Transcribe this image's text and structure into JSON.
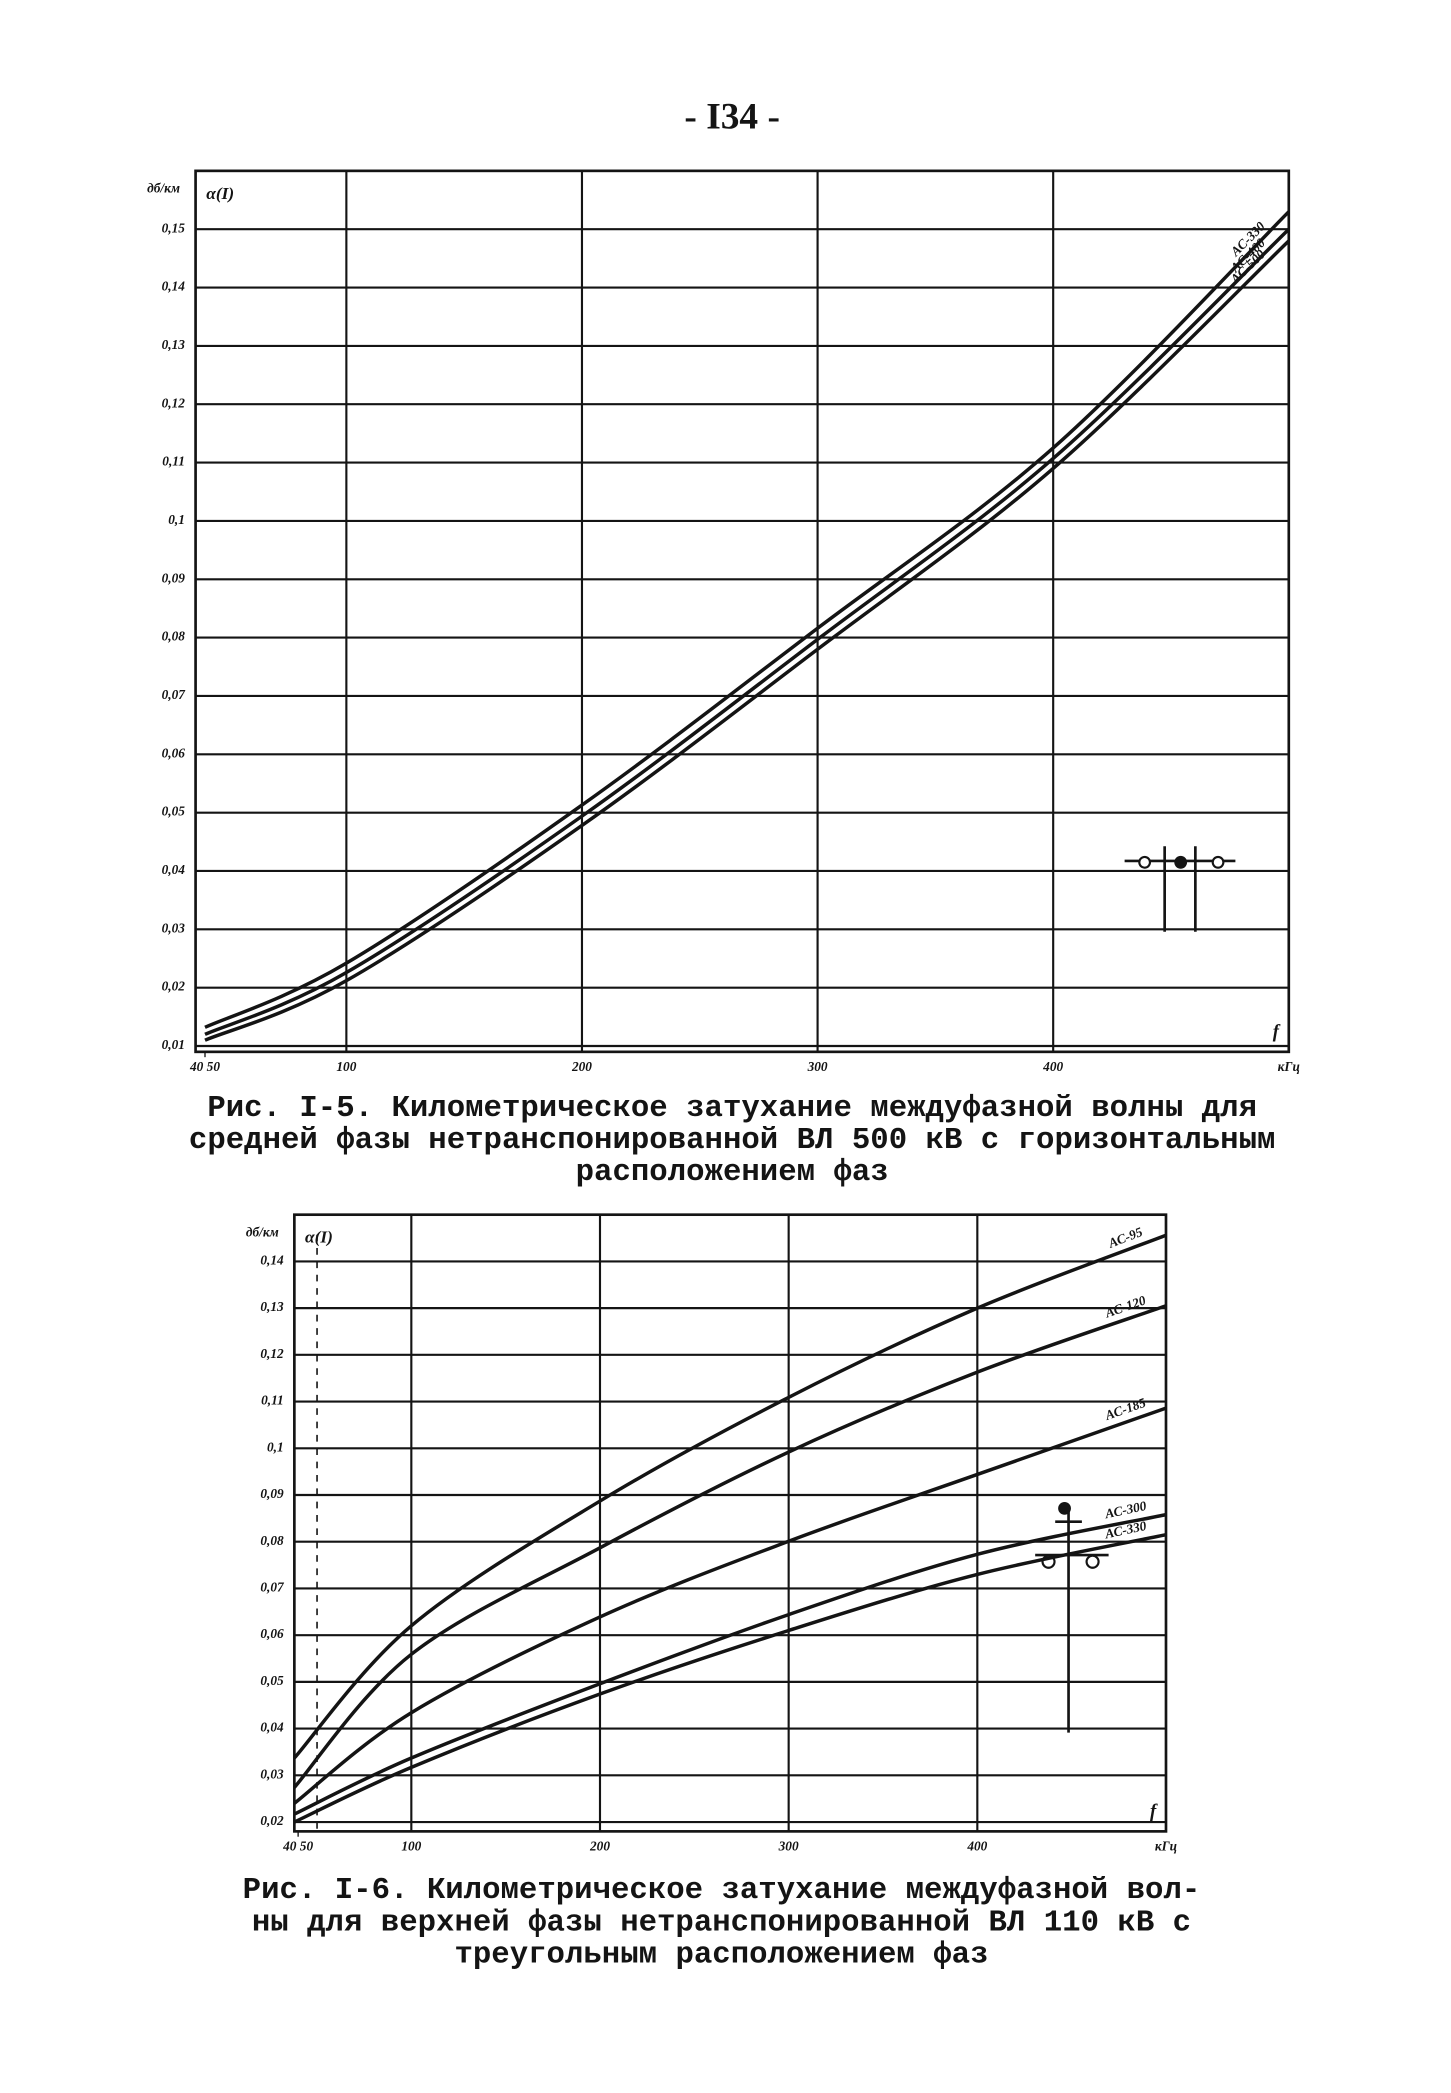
{
  "page_number": "- I34 -",
  "chart_data": [
    {
      "type": "line",
      "title": [
        "Рис. I-5. Километрическое затухание междуфазной волны для",
        "средней фазы нетранспонированной ВЛ 500 кВ с горизонтальным",
        "расположением фаз"
      ],
      "y_unit": "дб/км",
      "y_label": "α(I)",
      "x_label": "f",
      "x_unit": "кГц",
      "x": [
        40,
        100,
        200,
        300,
        400,
        500
      ],
      "series": [
        {
          "name": "АС-330",
          "color": "#141414",
          "values": [
            0.0132,
            0.0242,
            0.0513,
            0.0816,
            0.1125,
            0.153
          ]
        },
        {
          "name": "АС-400",
          "color": "#141414",
          "values": [
            0.012,
            0.0226,
            0.0494,
            0.0797,
            0.1107,
            0.15
          ]
        },
        {
          "name": "АС-500",
          "color": "#141414",
          "values": [
            0.011,
            0.0212,
            0.0478,
            0.078,
            0.109,
            0.148
          ]
        }
      ],
      "xlim": [
        36,
        500
      ],
      "ylim": [
        0.009,
        0.16
      ],
      "xticks": [
        {
          "value": 40,
          "label": "40 50"
        },
        100,
        200,
        300,
        400
      ],
      "yticks": [
        {
          "value": 0.01,
          "label": "0,01"
        },
        {
          "value": 0.02,
          "label": "0,02"
        },
        {
          "value": 0.03,
          "label": "0,03"
        },
        {
          "value": 0.04,
          "label": "0,04"
        },
        {
          "value": 0.05,
          "label": "0,05"
        },
        {
          "value": 0.06,
          "label": "0,06"
        },
        {
          "value": 0.07,
          "label": "0,07"
        },
        {
          "value": 0.08,
          "label": "0,08"
        },
        {
          "value": 0.09,
          "label": "0,09"
        },
        {
          "value": 0.1,
          "label": "0,1"
        },
        {
          "value": 0.11,
          "label": "0,11"
        },
        {
          "value": 0.12,
          "label": "0,12"
        },
        {
          "value": 0.13,
          "label": "0,13"
        },
        {
          "value": 0.14,
          "label": "0,14"
        },
        {
          "value": 0.15,
          "label": "0,15"
        }
      ],
      "grid": true
    },
    {
      "type": "line",
      "title": [
        "Рис. I-6. Километрическое затухание междуфазной вол-",
        "ны для верхней фазы нетранспонированной ВЛ 110 кВ с",
        "треугольным расположением фаз"
      ],
      "y_unit": "дб/км",
      "y_label": "α(I)",
      "x_label": "f",
      "x_unit": "кГц",
      "x": [
        38,
        100,
        200,
        300,
        400,
        500
      ],
      "series": [
        {
          "name": "АС-95",
          "color": "#141414",
          "values": [
            0.0337,
            0.062,
            0.0887,
            0.1109,
            0.13,
            0.1456
          ]
        },
        {
          "name": "АС-120",
          "color": "#141414",
          "values": [
            0.0274,
            0.0559,
            0.0787,
            0.0992,
            0.1163,
            0.1305
          ]
        },
        {
          "name": "АС-185",
          "color": "#141414",
          "values": [
            0.024,
            0.0434,
            0.0639,
            0.0801,
            0.0944,
            0.1086
          ]
        },
        {
          "name": "АС-300",
          "color": "#141414",
          "values": [
            0.0217,
            0.0337,
            0.0496,
            0.0644,
            0.0773,
            0.0858
          ]
        },
        {
          "name": "АС-330",
          "color": "#141414",
          "values": [
            0.02,
            0.0317,
            0.0474,
            0.061,
            0.073,
            0.0815
          ]
        }
      ],
      "xlim": [
        38,
        500
      ],
      "ylim": [
        0.018,
        0.15
      ],
      "xticks": [
        {
          "value": 40,
          "label": "40 50"
        },
        100,
        200,
        300,
        400
      ],
      "yticks": [
        {
          "value": 0.02,
          "label": "0,02"
        },
        {
          "value": 0.03,
          "label": "0,03"
        },
        {
          "value": 0.04,
          "label": "0,04"
        },
        {
          "value": 0.05,
          "label": "0,05"
        },
        {
          "value": 0.06,
          "label": "0,06"
        },
        {
          "value": 0.07,
          "label": "0,07"
        },
        {
          "value": 0.08,
          "label": "0,08"
        },
        {
          "value": 0.09,
          "label": "0,09"
        },
        {
          "value": 0.1,
          "label": "0,1"
        },
        {
          "value": 0.11,
          "label": "0,11"
        },
        {
          "value": 0.12,
          "label": "0,12"
        },
        {
          "value": 0.13,
          "label": "0,13"
        },
        {
          "value": 0.14,
          "label": "0,14"
        }
      ],
      "grid": true
    }
  ]
}
